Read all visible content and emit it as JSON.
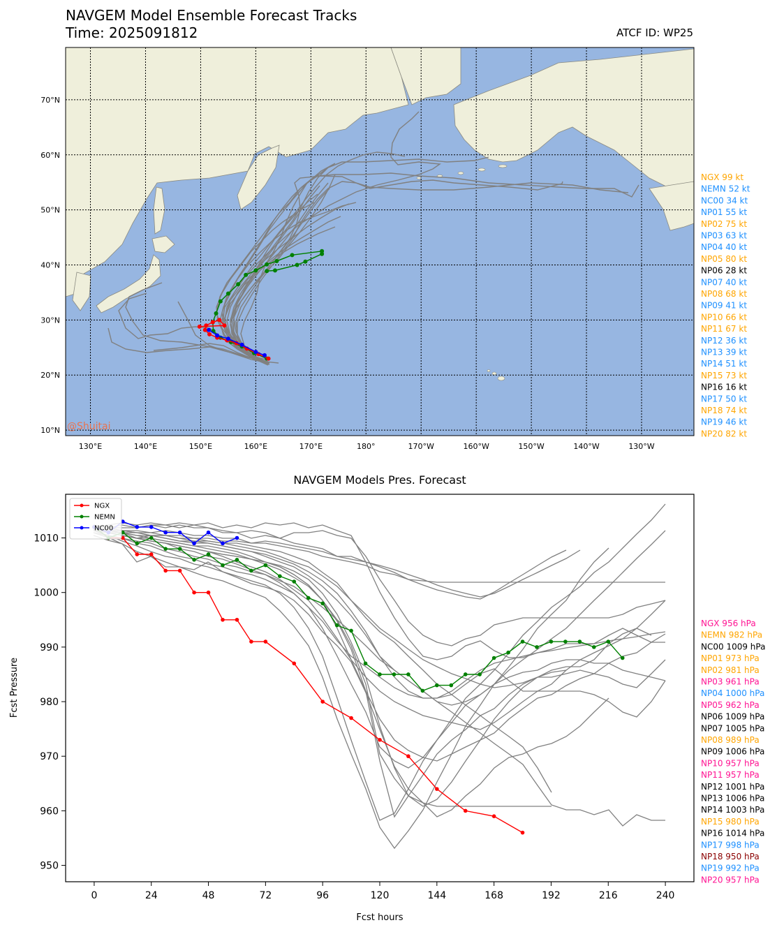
{
  "header": {
    "title": "NAVGEM Model Ensemble Forecast Tracks",
    "time": "Time: 2025091812",
    "atcf": "ATCF ID: WP25",
    "watermark": "@Shuitai"
  },
  "colors": {
    "ocean": "#97b6e1",
    "land": "#efefdb",
    "coast": "#8a8a80",
    "member": "#808080",
    "ngx": "#ff0000",
    "nemn": "#008000",
    "nc00": "#0000ff",
    "label_orange": "#ffa500",
    "label_blue": "#1e90ff",
    "label_black": "#000000",
    "label_pink": "#ff1493",
    "label_maroon": "#8b0000"
  },
  "chart_data": [
    {
      "type": "map-tracks",
      "lat_ticks": [
        10,
        20,
        30,
        40,
        50,
        60,
        70
      ],
      "lat_labels": [
        "10°N",
        "20°N",
        "30°N",
        "40°N",
        "50°N",
        "60°N",
        "70°N"
      ],
      "lon_ticks": [
        130,
        140,
        150,
        160,
        170,
        180,
        190,
        200,
        210,
        220,
        230
      ],
      "lon_labels": [
        "130°E",
        "140°E",
        "150°E",
        "160°E",
        "170°E",
        "180°",
        "170°W",
        "160°W",
        "150°W",
        "140°W",
        "130°W"
      ],
      "lon_range": [
        125.5,
        239.5
      ],
      "lat_range": [
        9,
        79.5
      ],
      "grid": true,
      "tracks": {
        "NGX": [
          [
            162.3,
            23.0
          ],
          [
            160.5,
            23.8
          ],
          [
            158.4,
            24.8
          ],
          [
            156.5,
            25.8
          ],
          [
            154.8,
            26.3
          ],
          [
            153.0,
            26.8
          ],
          [
            151.6,
            27.4
          ],
          [
            150.8,
            28.2
          ],
          [
            151.0,
            29.0
          ],
          [
            152.2,
            29.6
          ],
          [
            153.4,
            30.0
          ],
          [
            154.3,
            29.0
          ],
          [
            149.8,
            28.8
          ]
        ],
        "NEMN": [
          [
            162.0,
            23.0
          ],
          [
            159.7,
            24.0
          ],
          [
            157.5,
            25.2
          ],
          [
            155.5,
            26.0
          ],
          [
            153.6,
            26.8
          ],
          [
            152.3,
            28.0
          ],
          [
            152.2,
            29.6
          ],
          [
            152.8,
            31.2
          ],
          [
            153.6,
            33.4
          ],
          [
            155.0,
            34.8
          ],
          [
            156.8,
            36.5
          ],
          [
            158.2,
            38.2
          ],
          [
            160.0,
            39.0
          ],
          [
            162.0,
            40.1
          ],
          [
            163.8,
            40.7
          ],
          [
            166.6,
            41.8
          ],
          [
            172.0,
            42.5
          ],
          [
            172.0,
            42.0
          ],
          [
            169.0,
            40.6
          ],
          [
            167.5,
            40.0
          ],
          [
            163.5,
            39.0
          ],
          [
            162.0,
            38.9
          ]
        ],
        "NC00": [
          [
            161.6,
            23.6
          ],
          [
            160.0,
            24.2
          ],
          [
            157.5,
            25.5
          ],
          [
            155.0,
            26.6
          ],
          [
            153.0,
            27.2
          ],
          [
            151.5,
            28.2
          ]
        ]
      },
      "wind_labels": [
        {
          "text": "NGX 99 kt",
          "color": "orange"
        },
        {
          "text": "NEMN 52 kt",
          "color": "blue"
        },
        {
          "text": "NC00 34 kt",
          "color": "blue"
        },
        {
          "text": "NP01 55 kt",
          "color": "blue"
        },
        {
          "text": "NP02 75 kt",
          "color": "orange"
        },
        {
          "text": "NP03 63 kt",
          "color": "blue"
        },
        {
          "text": "NP04 40 kt",
          "color": "blue"
        },
        {
          "text": "NP05 80 kt",
          "color": "orange"
        },
        {
          "text": "NP06 28 kt",
          "color": "black"
        },
        {
          "text": "NP07 40 kt",
          "color": "blue"
        },
        {
          "text": "NP08 68 kt",
          "color": "orange"
        },
        {
          "text": "NP09 41 kt",
          "color": "blue"
        },
        {
          "text": "NP10 66 kt",
          "color": "orange"
        },
        {
          "text": "NP11 67 kt",
          "color": "orange"
        },
        {
          "text": "NP12 36 kt",
          "color": "blue"
        },
        {
          "text": "NP13 39 kt",
          "color": "blue"
        },
        {
          "text": "NP14 51 kt",
          "color": "blue"
        },
        {
          "text": "NP15 73 kt",
          "color": "orange"
        },
        {
          "text": "NP16 16 kt",
          "color": "black"
        },
        {
          "text": "NP17 50 kt",
          "color": "blue"
        },
        {
          "text": "NP18 74 kt",
          "color": "orange"
        },
        {
          "text": "NP19 46 kt",
          "color": "blue"
        },
        {
          "text": "NP20 82 kt",
          "color": "orange"
        }
      ]
    },
    {
      "type": "line",
      "title": "NAVGEM Models Pres. Forecast",
      "xlabel": "Fcst hours",
      "ylabel": "Fcst Pressure",
      "xlim": [
        -12,
        252
      ],
      "ylim": [
        947,
        1018
      ],
      "x_ticks": [
        0,
        24,
        48,
        72,
        96,
        120,
        144,
        168,
        192,
        216,
        240
      ],
      "y_ticks": [
        950,
        960,
        970,
        980,
        990,
        1000,
        1010
      ],
      "legend_position": "upper-left",
      "series": [
        {
          "name": "NGX",
          "color": "ngx",
          "x": [
            0,
            6,
            12,
            18,
            24,
            30,
            36,
            42,
            48,
            54,
            60,
            66,
            72,
            84,
            96,
            108,
            120,
            132,
            144,
            156,
            168,
            180
          ],
          "values": [
            1012,
            1010,
            1010,
            1007,
            1007,
            1004,
            1004,
            1000,
            1000,
            995,
            995,
            991,
            991,
            987,
            980,
            977,
            973,
            970,
            964,
            960,
            959,
            956
          ]
        },
        {
          "name": "NEMN",
          "color": "nemn",
          "x": [
            0,
            6,
            12,
            18,
            24,
            30,
            36,
            42,
            48,
            54,
            60,
            66,
            72,
            78,
            84,
            90,
            96,
            102,
            108,
            114,
            120,
            126,
            132,
            138,
            144,
            150,
            156,
            162,
            168,
            174,
            180,
            186,
            192,
            198,
            204,
            210,
            216,
            222
          ],
          "values": [
            1012,
            1010,
            1011,
            1009,
            1010,
            1008,
            1008,
            1006,
            1007,
            1005,
            1006,
            1004,
            1005,
            1003,
            1002,
            999,
            998,
            994,
            993,
            987,
            985,
            985,
            985,
            982,
            983,
            983,
            985,
            985,
            988,
            989,
            991,
            990,
            991,
            991,
            991,
            990,
            991,
            988
          ]
        },
        {
          "name": "NC00",
          "color": "nc00",
          "x": [
            0,
            6,
            12,
            18,
            24,
            30,
            36,
            42,
            48,
            54,
            60
          ],
          "values": [
            1012,
            1011,
            1013,
            1012,
            1012,
            1011,
            1011,
            1009,
            1011,
            1009,
            1010
          ]
        }
      ],
      "pressure_labels": [
        {
          "text": "NGX 956 hPa",
          "color": "pink"
        },
        {
          "text": "NEMN 982 hPa",
          "color": "orange"
        },
        {
          "text": "NC00 1009 hPa",
          "color": "black"
        },
        {
          "text": "NP01 973 hPa",
          "color": "orange"
        },
        {
          "text": "NP02 981 hPa",
          "color": "orange"
        },
        {
          "text": "NP03 961 hPa",
          "color": "pink"
        },
        {
          "text": "NP04 1000 hPa",
          "color": "blue"
        },
        {
          "text": "NP05 962 hPa",
          "color": "pink"
        },
        {
          "text": "NP06 1009 hPa",
          "color": "black"
        },
        {
          "text": "NP07 1005 hPa",
          "color": "black"
        },
        {
          "text": "NP08 989 hPa",
          "color": "orange"
        },
        {
          "text": "NP09 1006 hPa",
          "color": "black"
        },
        {
          "text": "NP10 957 hPa",
          "color": "pink"
        },
        {
          "text": "NP11 957 hPa",
          "color": "pink"
        },
        {
          "text": "NP12 1001 hPa",
          "color": "black"
        },
        {
          "text": "NP13 1006 hPa",
          "color": "black"
        },
        {
          "text": "NP14 1003 hPa",
          "color": "black"
        },
        {
          "text": "NP15 980 hPa",
          "color": "orange"
        },
        {
          "text": "NP16 1014 hPa",
          "color": "black"
        },
        {
          "text": "NP17 998 hPa",
          "color": "blue"
        },
        {
          "text": "NP18 950 hPa",
          "color": "maroon"
        },
        {
          "text": "NP19 992 hPa",
          "color": "blue"
        },
        {
          "text": "NP20 957 hPa",
          "color": "pink"
        }
      ]
    }
  ]
}
